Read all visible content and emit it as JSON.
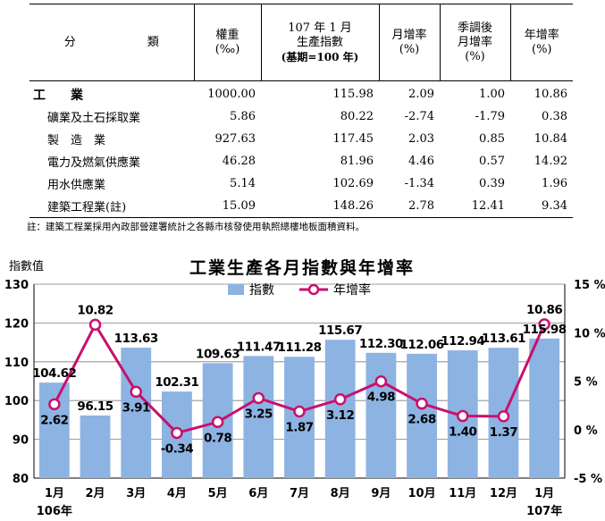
{
  "table": {
    "headers": {
      "category": "分　　類",
      "weight_line1": "權重",
      "weight_line2": "(‰)",
      "index_line1": "107 年 1 月",
      "index_line2": "生產指數",
      "index_line3": "(基期=100 年)",
      "mom_line1": "月增率",
      "mom_line2": "(%)",
      "sa_line1": "季調後",
      "sa_line2": "月增率",
      "sa_line3": "(%)",
      "yoy_line1": "年增率",
      "yoy_line2": "(%)"
    },
    "rows": [
      {
        "category": "工　　業",
        "weight": "1000.00",
        "index": "115.98",
        "mom": "2.09",
        "sa_mom": "1.00",
        "yoy": "10.86"
      },
      {
        "category": "礦業及土石採取業",
        "weight": "5.86",
        "index": "80.22",
        "mom": "-2.74",
        "sa_mom": "-1.79",
        "yoy": "0.38"
      },
      {
        "category": "製　造　業",
        "weight": "927.63",
        "index": "117.45",
        "mom": "2.03",
        "sa_mom": "0.85",
        "yoy": "10.84"
      },
      {
        "category": "電力及燃氣供應業",
        "weight": "46.28",
        "index": "81.96",
        "mom": "4.46",
        "sa_mom": "0.57",
        "yoy": "14.92"
      },
      {
        "category": "用水供應業",
        "weight": "5.14",
        "index": "102.69",
        "mom": "-1.34",
        "sa_mom": "0.39",
        "yoy": "1.96"
      },
      {
        "category": "建築工程業(註)",
        "weight": "15.09",
        "index": "148.26",
        "mom": "2.78",
        "sa_mom": "12.41",
        "yoy": "9.34"
      }
    ],
    "note": "註：建築工程業採用內政部營建署統計之各縣市核發使用執照總樓地板面積資料。"
  },
  "chart_data": {
    "type": "bar",
    "title": "工業生產各月指數與年增率",
    "ylabel": "指數值",
    "ylim": [
      80,
      130
    ],
    "yticks": [
      80,
      90,
      100,
      110,
      120,
      130
    ],
    "y2lim": [
      -5,
      15
    ],
    "y2ticks": [
      "15 %",
      "10 %",
      "5 %",
      "0 %",
      "-5 %"
    ],
    "categories": [
      "1月",
      "2月",
      "3月",
      "4月",
      "5月",
      "6月",
      "7月",
      "8月",
      "9月",
      "10月",
      "11月",
      "12月",
      "1月"
    ],
    "year_labels": [
      {
        "index": 0,
        "label": "106年"
      },
      {
        "index": 12,
        "label": "107年"
      }
    ],
    "series": [
      {
        "name": "指數",
        "type": "bar",
        "axis": "left",
        "color": "#8DB3E2",
        "values": [
          104.62,
          96.15,
          113.63,
          102.31,
          109.63,
          111.47,
          111.28,
          115.67,
          112.3,
          112.06,
          112.94,
          113.61,
          115.98
        ]
      },
      {
        "name": "年增率",
        "type": "line",
        "axis": "right",
        "color": "#C8106E",
        "values": [
          2.62,
          10.82,
          3.91,
          -0.34,
          0.78,
          3.25,
          1.87,
          3.12,
          4.98,
          2.68,
          1.4,
          1.37,
          10.86
        ]
      }
    ],
    "legend": "top",
    "grid": true
  }
}
